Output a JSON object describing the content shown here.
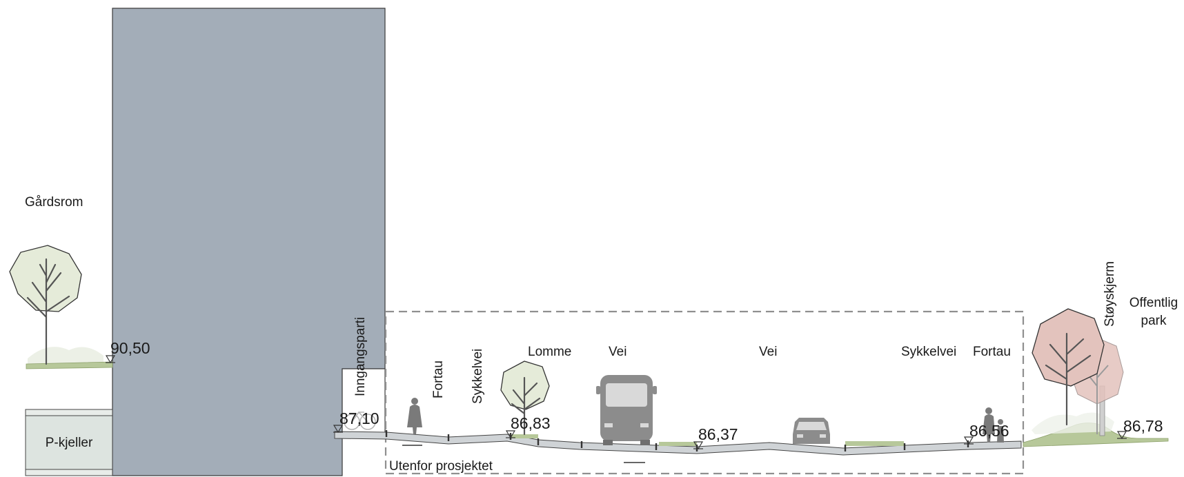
{
  "diagram": {
    "labels": {
      "gardsrom": "Gårdsrom",
      "p_kjeller": "P-kjeller",
      "inngangsparti": "Inngangsparti",
      "fortau_left": "Fortau",
      "sykkelvei_left": "Sykkelvei",
      "lomme": "Lomme",
      "vei_left": "Vei",
      "vei_right": "Vei",
      "sykkelvei_right": "Sykkelvei",
      "fortau_right": "Fortau",
      "stoyskjerm": "Støyskjerm",
      "offentlig_park_line1": "Offentlig",
      "offentlig_park_line2": "park",
      "utenfor_prosjektet": "Utenfor prosjektet"
    },
    "elevations": {
      "courtyard": "90,50",
      "entrance": "87,10",
      "lomme": "86,83",
      "road": "86,37",
      "sidewalk_right": "86,56",
      "park": "86,78"
    },
    "colors": {
      "building": "#a3adb8",
      "tree_green_fill": "#e5ebd9",
      "tree_pink_fill": "#e3c3bd",
      "grass": "#b7c89a",
      "pavement": "#cfd3d6",
      "basement_fill": "#dde4e0",
      "vehicle": "#8c8c8c",
      "dashed_boundary": "#8f8f8f"
    },
    "icons": [
      "tree-icon",
      "bus-icon",
      "car-icon",
      "pedestrian-icon",
      "bicycle-icon",
      "elevation-marker-icon"
    ]
  }
}
